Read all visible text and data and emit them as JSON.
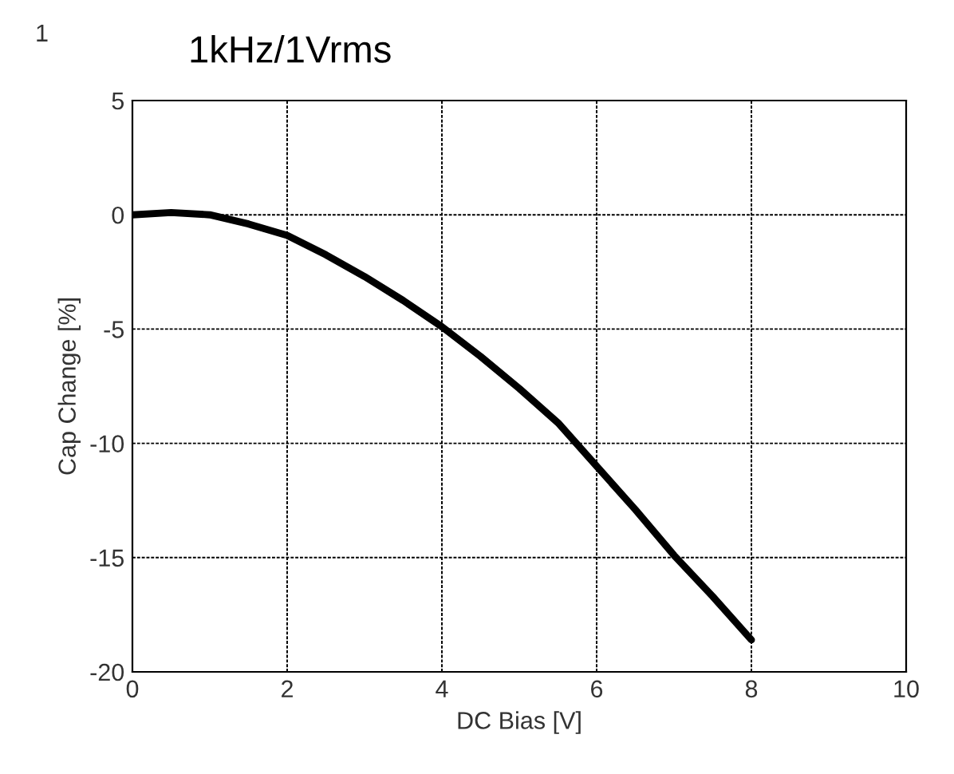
{
  "chart_data": {
    "type": "line",
    "title": "1kHz/1Vrms",
    "xlabel": "DC Bias [V]",
    "ylabel": "Cap Change [%]",
    "annotations": [
      "1"
    ],
    "x": [
      0,
      0.5,
      1,
      1.5,
      2,
      2.5,
      3,
      3.5,
      4,
      4.5,
      5,
      5.5,
      6,
      6.5,
      7,
      7.5,
      8
    ],
    "series": [
      {
        "color": "#000000",
        "values": [
          0,
          0.1,
          0,
          -0.4,
          -0.9,
          -1.75,
          -2.7,
          -3.75,
          -4.9,
          -6.2,
          -7.6,
          -9.1,
          -11.0,
          -12.9,
          -14.9,
          -16.7,
          -18.6
        ]
      }
    ],
    "xlim": [
      0,
      10
    ],
    "xticks": [
      0,
      2,
      4,
      6,
      8,
      10
    ],
    "ylim": [
      -20,
      5
    ],
    "yticks": [
      -20,
      -15,
      -10,
      -5,
      0,
      5
    ],
    "grid": true,
    "line_style": "solid",
    "marker": "none",
    "legend": false
  }
}
